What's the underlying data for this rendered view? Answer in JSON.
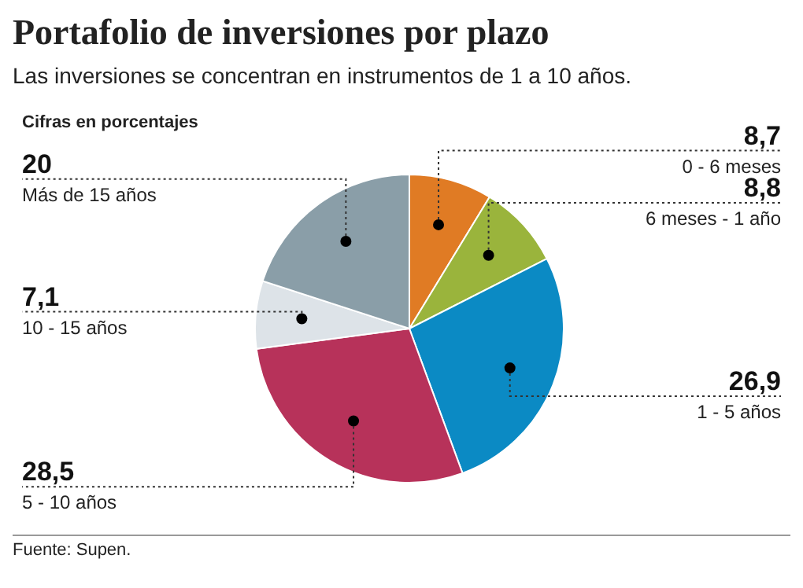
{
  "chart_data": {
    "type": "pie",
    "title": "Portafolio de inversiones por plazo",
    "subtitle": "Las inversiones se concentran en instrumentos de 1 a 10 años.",
    "categories": [
      "0 - 6 meses",
      "6 meses - 1 año",
      "1 - 5 años",
      "5 - 10 años",
      "10 - 15 años",
      "Más de 15 años"
    ],
    "values": [
      8.7,
      8.8,
      26.9,
      28.5,
      7.1,
      20
    ],
    "value_labels": [
      "8,7",
      "8,8",
      "26,9",
      "28,5",
      "7,1",
      "20"
    ],
    "colors": [
      "#e07b24",
      "#9ab43c",
      "#0b8ac4",
      "#b7325a",
      "#dde3e8",
      "#8a9ea8"
    ],
    "annotations": [
      "Cifras en porcentajes",
      "Fuente: Supen."
    ],
    "legend": false
  }
}
